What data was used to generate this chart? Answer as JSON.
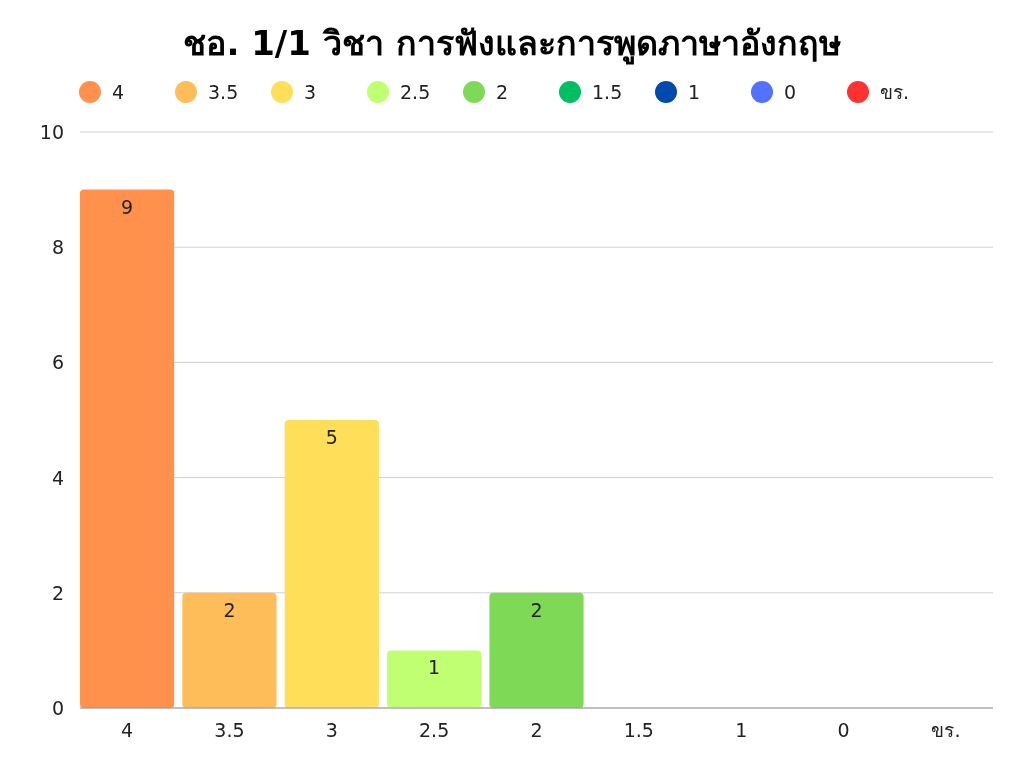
{
  "chart_data": {
    "type": "bar",
    "title": "ชอ. 1/1 วิชา การฟังและการพูดภาษาอังกฤษ",
    "categories": [
      "4",
      "3.5",
      "3",
      "2.5",
      "2",
      "1.5",
      "1",
      "0",
      "ขร."
    ],
    "series": [
      {
        "name": "4",
        "color": "#ff914d",
        "values": [
          9,
          null,
          null,
          null,
          null,
          null,
          null,
          null,
          null
        ],
        "value_labels": [
          "9",
          null,
          null,
          null,
          null,
          null,
          null,
          null,
          null
        ]
      },
      {
        "name": "3.5",
        "color": "#ffbd59",
        "values": [
          null,
          2,
          null,
          null,
          null,
          null,
          null,
          null,
          null
        ],
        "value_labels": [
          null,
          "2",
          null,
          null,
          null,
          null,
          null,
          null,
          null
        ]
      },
      {
        "name": "3",
        "color": "#ffde59",
        "values": [
          null,
          null,
          5,
          null,
          null,
          null,
          null,
          null,
          null
        ],
        "value_labels": [
          null,
          null,
          "5",
          null,
          null,
          null,
          null,
          null,
          null
        ]
      },
      {
        "name": "2.5",
        "color": "#c1ff72",
        "values": [
          null,
          null,
          null,
          1,
          null,
          null,
          null,
          null,
          null
        ],
        "value_labels": [
          null,
          null,
          null,
          "1",
          null,
          null,
          null,
          null,
          null
        ]
      },
      {
        "name": "2",
        "color": "#7ed957",
        "values": [
          null,
          null,
          null,
          null,
          2,
          null,
          null,
          null,
          null
        ],
        "value_labels": [
          null,
          null,
          null,
          null,
          "2",
          null,
          null,
          null,
          null
        ]
      },
      {
        "name": "1.5",
        "color": "#00bf63",
        "values": [
          null,
          null,
          null,
          null,
          null,
          0,
          null,
          null,
          null
        ]
      },
      {
        "name": "1",
        "color": "#004aad",
        "values": [
          null,
          null,
          null,
          null,
          null,
          null,
          0,
          null,
          null
        ]
      },
      {
        "name": "0",
        "color": "#5271ff",
        "values": [
          null,
          null,
          null,
          null,
          null,
          null,
          null,
          0,
          null
        ]
      },
      {
        "name": "ขร.",
        "color": "#ff3131",
        "values": [
          null,
          null,
          null,
          null,
          null,
          null,
          null,
          null,
          0
        ]
      }
    ],
    "ylim": [
      0,
      10
    ],
    "yticks": [
      0,
      2,
      4,
      6,
      8,
      10
    ],
    "grid": "y",
    "legend": "top"
  }
}
